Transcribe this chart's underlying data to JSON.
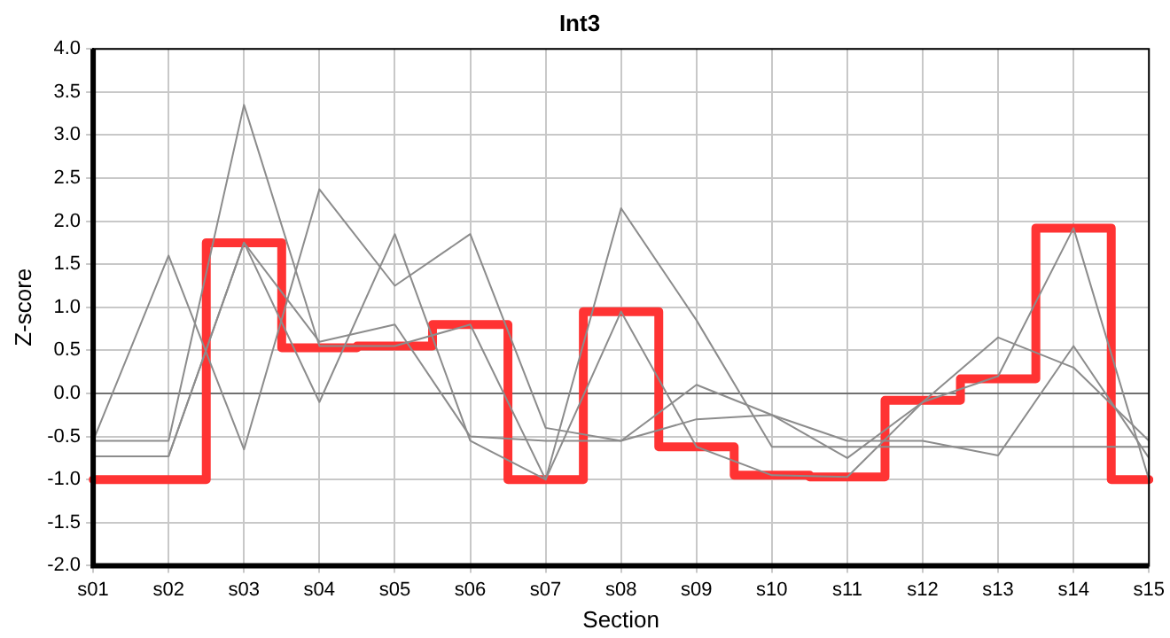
{
  "chart_data": {
    "type": "line",
    "title": "Int3",
    "xlabel": "Section",
    "ylabel": "Z-score",
    "categories": [
      "s01",
      "s02",
      "s03",
      "s04",
      "s05",
      "s06",
      "s07",
      "s08",
      "s09",
      "s10",
      "s11",
      "s12",
      "s13",
      "s14",
      "s15"
    ],
    "series": [
      {
        "color": "#8c8c8c",
        "values": [
          -0.55,
          1.6,
          -0.65,
          2.37,
          1.25,
          1.85,
          -0.4,
          -0.55,
          -0.3,
          -0.25,
          -0.55,
          -0.55,
          -0.72,
          0.55,
          -0.75
        ]
      },
      {
        "color": "#8c8c8c",
        "values": [
          -0.55,
          -0.55,
          3.35,
          0.55,
          0.55,
          0.8,
          -1.0,
          0.95,
          -0.62,
          -0.95,
          -0.97,
          -0.1,
          0.2,
          1.92,
          -1.0
        ]
      },
      {
        "color": "#8c8c8c",
        "values": [
          -0.73,
          -0.73,
          1.75,
          -0.1,
          1.85,
          -0.55,
          -1.0,
          2.15,
          0.85,
          -0.62,
          -0.62,
          -0.62,
          -0.62,
          -0.62,
          -0.62
        ]
      },
      {
        "color": "#8c8c8c",
        "values": [
          -0.73,
          -0.73,
          1.75,
          0.6,
          0.8,
          -0.5,
          -0.55,
          -0.55,
          0.1,
          -0.25,
          -0.75,
          -0.1,
          0.65,
          0.3,
          -0.55
        ]
      },
      {
        "type": "step",
        "color": "#ff3333",
        "values": [
          -1.0,
          -1.0,
          1.75,
          0.53,
          0.55,
          0.8,
          -1.0,
          0.95,
          -0.62,
          -0.95,
          -0.97,
          -0.08,
          0.17,
          1.92,
          -1.0
        ]
      }
    ],
    "ylim": [
      -2.0,
      4.0
    ],
    "yticks": [
      {
        "value": -2,
        "label": "-2.0"
      },
      {
        "value": -1.5,
        "label": "-1.5"
      },
      {
        "value": -1,
        "label": "-1.0"
      },
      {
        "value": -0.5,
        "label": "-0.5"
      },
      {
        "value": 0,
        "label": "0.0"
      },
      {
        "value": 0.5,
        "label": "0.5"
      },
      {
        "value": 1,
        "label": "1.0"
      },
      {
        "value": 1.5,
        "label": "1.5"
      },
      {
        "value": 2,
        "label": "2.0"
      },
      {
        "value": 2.5,
        "label": "2.5"
      },
      {
        "value": 3,
        "label": "3.0"
      },
      {
        "value": 3.5,
        "label": "3.5"
      },
      {
        "value": 4,
        "label": "4.0"
      }
    ],
    "ref_lines": [
      {
        "axis": "y",
        "value": 0,
        "color": "#707070"
      }
    ],
    "grid": true,
    "legend": false,
    "marker": "none",
    "line_style": "solid"
  }
}
